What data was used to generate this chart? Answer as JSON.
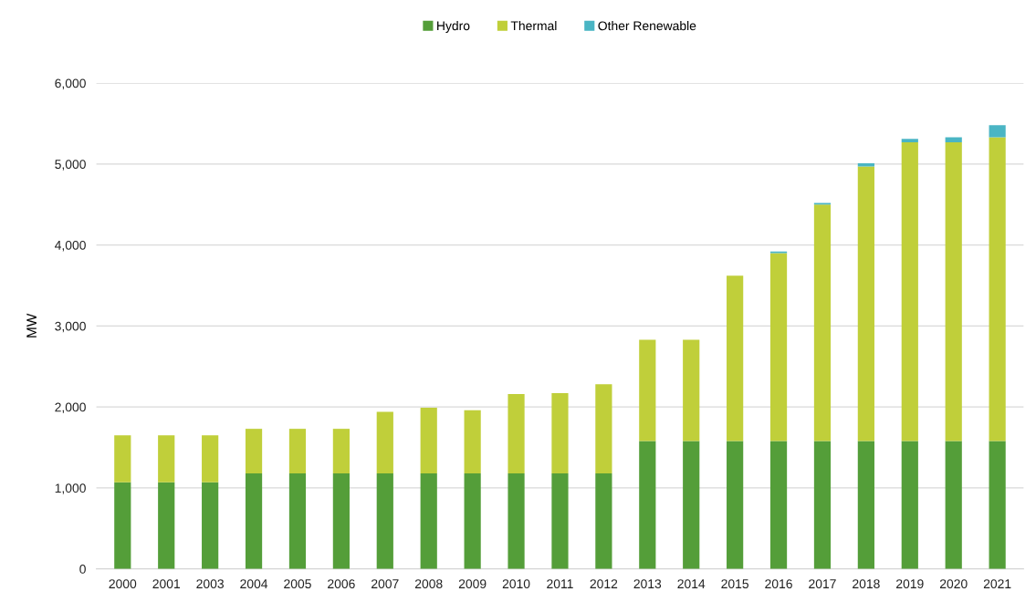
{
  "chart_data": {
    "type": "bar",
    "stacked": true,
    "ylabel": "MW",
    "categories": [
      "2000",
      "2001",
      "2003",
      "2004",
      "2005",
      "2006",
      "2007",
      "2008",
      "2009",
      "2010",
      "2011",
      "2012",
      "2013",
      "2014",
      "2015",
      "2016",
      "2017",
      "2018",
      "2019",
      "2020",
      "2021"
    ],
    "series": [
      {
        "name": "Hydro",
        "color": "#549e39",
        "values": [
          1070,
          1070,
          1070,
          1180,
          1180,
          1180,
          1180,
          1180,
          1180,
          1180,
          1180,
          1180,
          1580,
          1580,
          1580,
          1580,
          1580,
          1580,
          1580,
          1580,
          1580
        ]
      },
      {
        "name": "Thermal",
        "color": "#c0cf3a",
        "values": [
          580,
          580,
          580,
          550,
          550,
          550,
          760,
          810,
          780,
          980,
          990,
          1100,
          1250,
          1250,
          2040,
          2320,
          2920,
          3390,
          3690,
          3690,
          3750
        ]
      },
      {
        "name": "Other Renewable",
        "color": "#4ab5c4",
        "values": [
          0,
          0,
          0,
          0,
          0,
          0,
          0,
          0,
          0,
          0,
          0,
          0,
          0,
          0,
          0,
          20,
          20,
          40,
          40,
          60,
          150
        ]
      }
    ],
    "ylim": [
      0,
      6000
    ],
    "yticks": [
      {
        "value": 0,
        "label": "0"
      },
      {
        "value": 1000,
        "label": "1,000"
      },
      {
        "value": 2000,
        "label": "2,000"
      },
      {
        "value": 3000,
        "label": "3,000"
      },
      {
        "value": 4000,
        "label": "4,000"
      },
      {
        "value": 5000,
        "label": "5,000"
      },
      {
        "value": 6000,
        "label": "6,000"
      }
    ],
    "grid": "y",
    "legend": "top"
  }
}
